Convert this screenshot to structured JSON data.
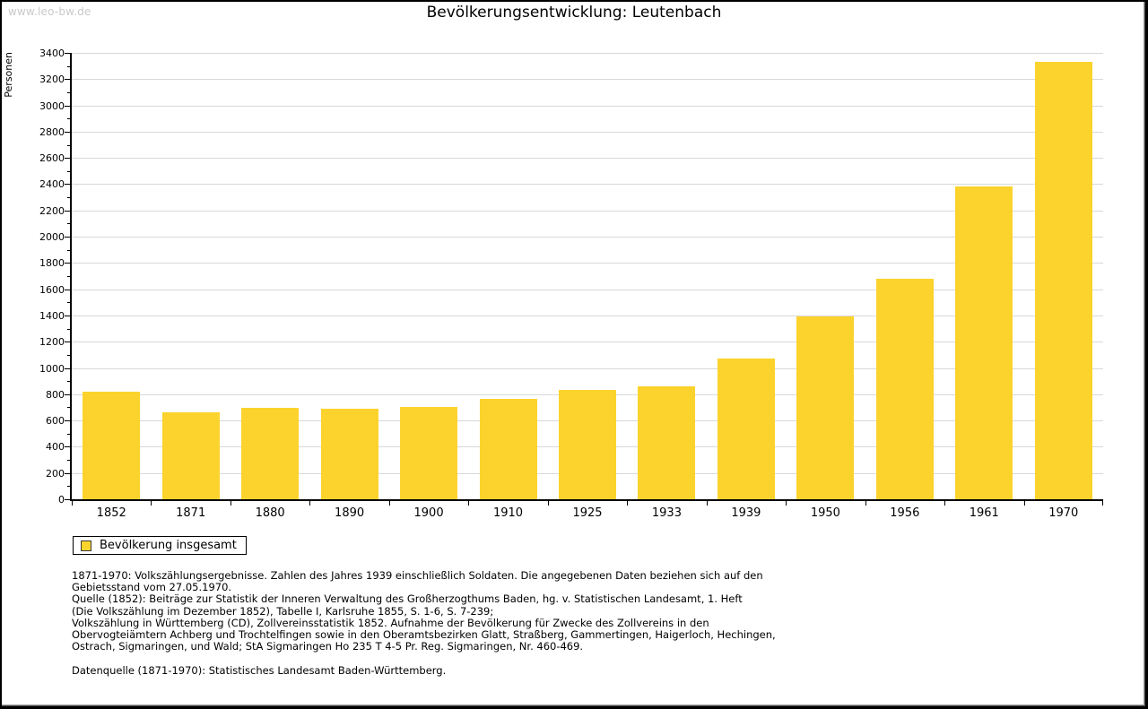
{
  "watermark": "www.leo-bw.de",
  "title": "Bevölkerungsentwicklung: Leutenbach",
  "chart_data": {
    "type": "bar",
    "title": "Bevölkerungsentwicklung: Leutenbach",
    "xlabel": "",
    "ylabel": "Personen",
    "categories": [
      "1852",
      "1871",
      "1880",
      "1890",
      "1900",
      "1910",
      "1925",
      "1933",
      "1939",
      "1950",
      "1956",
      "1961",
      "1970"
    ],
    "values": [
      820,
      665,
      695,
      690,
      700,
      765,
      835,
      860,
      1070,
      1390,
      1680,
      2380,
      3335
    ],
    "series_name": "Bevölkerung insgesamt",
    "ylim": [
      0,
      3400
    ],
    "ytick_step": 200,
    "ytick_minor_step": 100,
    "yticks": [
      0,
      200,
      400,
      600,
      800,
      1000,
      1200,
      1400,
      1600,
      1800,
      2000,
      2200,
      2400,
      2600,
      2800,
      3000,
      3200,
      3400
    ],
    "grid": true,
    "legend_position": "bottom-left",
    "bar_color": "#FCD32D",
    "grid_color": "#D8D8D8",
    "axis_color": "#000000"
  },
  "legend": {
    "label": "Bevölkerung insgesamt",
    "swatch_color": "#FCD32D"
  },
  "footer": {
    "lines": [
      "1871-1970: Volkszählungsergebnisse. Zahlen des Jahres 1939 einschließlich Soldaten. Die angegebenen Daten beziehen sich auf den",
      "Gebietsstand vom 27.05.1970.",
      "Quelle (1852): Beiträge zur Statistik der Inneren Verwaltung des Großherzogthums Baden, hg. v. Statistischen Landesamt, 1. Heft",
      "(Die Volkszählung im Dezember 1852), Tabelle I, Karlsruhe 1855, S. 1-6, S. 7-239;",
      "Volkszählung in Württemberg (CD), Zollvereinsstatistik 1852. Aufnahme der Bevölkerung für Zwecke des Zollvereins in den",
      "Obervogteiämtern Achberg und Trochtelfingen sowie in den Oberamtsbezirken Glatt, Straßberg, Gammertingen, Haigerloch, Hechingen,",
      "Ostrach, Sigmaringen, und Wald; StA Sigmaringen Ho 235 T 4-5 Pr. Reg. Sigmaringen, Nr. 460-469."
    ],
    "datasource": "Datenquelle (1871-1970): Statistisches Landesamt Baden-Württemberg."
  }
}
